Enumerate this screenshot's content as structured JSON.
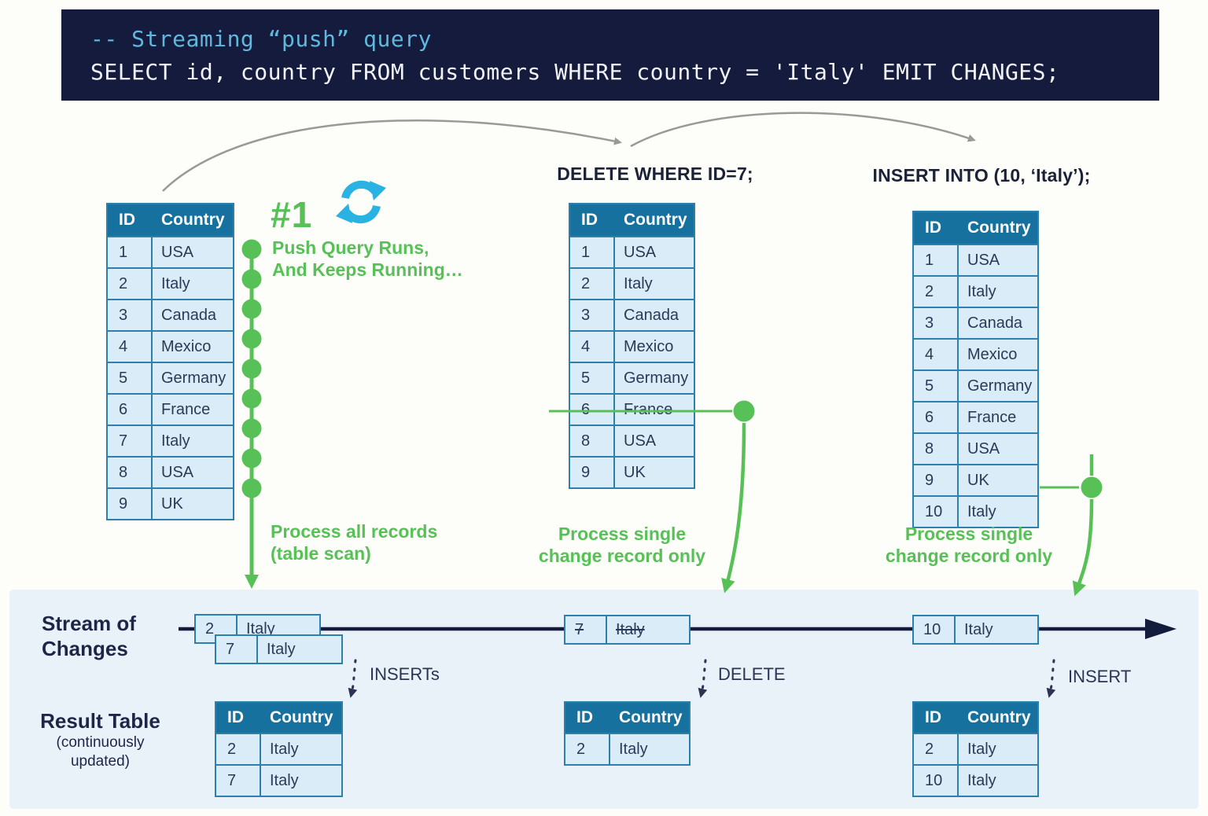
{
  "code_block": {
    "comment": "-- Streaming “push” query",
    "query": "SELECT id, country FROM customers WHERE country = 'Italy' EMIT CHANGES;"
  },
  "colors": {
    "green": "#57c157",
    "cyan": "#29b2e2",
    "navy": "#1d2647",
    "table_header_bg": "#16719f",
    "table_row_bg": "#d9ecf7",
    "table_border": "#2d7fae",
    "band_bg": "#e9f2f9",
    "code_bg": "#141b3c",
    "code_comment": "#5fb9de"
  },
  "tables": {
    "headers": [
      "ID",
      "Country"
    ],
    "source_initial": {
      "rows": [
        [
          "1",
          "USA"
        ],
        [
          "2",
          "Italy"
        ],
        [
          "3",
          "Canada"
        ],
        [
          "4",
          "Mexico"
        ],
        [
          "5",
          "Germany"
        ],
        [
          "6",
          "France"
        ],
        [
          "7",
          "Italy"
        ],
        [
          "8",
          "USA"
        ],
        [
          "9",
          "UK"
        ]
      ]
    },
    "source_after_delete": {
      "title": "DELETE WHERE ID=7;",
      "rows": [
        [
          "1",
          "USA"
        ],
        [
          "2",
          "Italy"
        ],
        [
          "3",
          "Canada"
        ],
        [
          "4",
          "Mexico"
        ],
        [
          "5",
          "Germany"
        ],
        [
          "6",
          "France"
        ],
        [
          "8",
          "USA"
        ],
        [
          "9",
          "UK"
        ]
      ]
    },
    "source_after_insert": {
      "title": "INSERT INTO (10, ‘Italy’);",
      "rows": [
        [
          "1",
          "USA"
        ],
        [
          "2",
          "Italy"
        ],
        [
          "3",
          "Canada"
        ],
        [
          "4",
          "Mexico"
        ],
        [
          "5",
          "Germany"
        ],
        [
          "6",
          "France"
        ],
        [
          "8",
          "USA"
        ],
        [
          "9",
          "UK"
        ],
        [
          "10",
          "Italy"
        ]
      ]
    }
  },
  "annotations": {
    "step_number": "#1",
    "push_query": [
      "Push Query Runs,",
      "And Keeps Running…"
    ],
    "process_all": [
      "Process all records",
      "(table scan)"
    ],
    "process_single": [
      "Process single",
      "change record only"
    ]
  },
  "stream": {
    "label": [
      "Stream of",
      "Changes"
    ],
    "chips": {
      "insert_2": [
        "2",
        "Italy"
      ],
      "insert_7": [
        "7",
        "Italy"
      ],
      "delete_7": [
        "7",
        "Italy"
      ],
      "insert_10": [
        "10",
        "Italy"
      ]
    },
    "event_labels": {
      "inserts": "INSERTs",
      "delete": "DELETE",
      "insert": "INSERT"
    }
  },
  "result": {
    "label": "Result Table",
    "sublabel": [
      "(continuously",
      "updated)"
    ],
    "after_scan": {
      "rows": [
        [
          "2",
          "Italy"
        ],
        [
          "7",
          "Italy"
        ]
      ]
    },
    "after_delete": {
      "rows": [
        [
          "2",
          "Italy"
        ]
      ]
    },
    "after_insert": {
      "rows": [
        [
          "2",
          "Italy"
        ],
        [
          "10",
          "Italy"
        ]
      ]
    }
  }
}
